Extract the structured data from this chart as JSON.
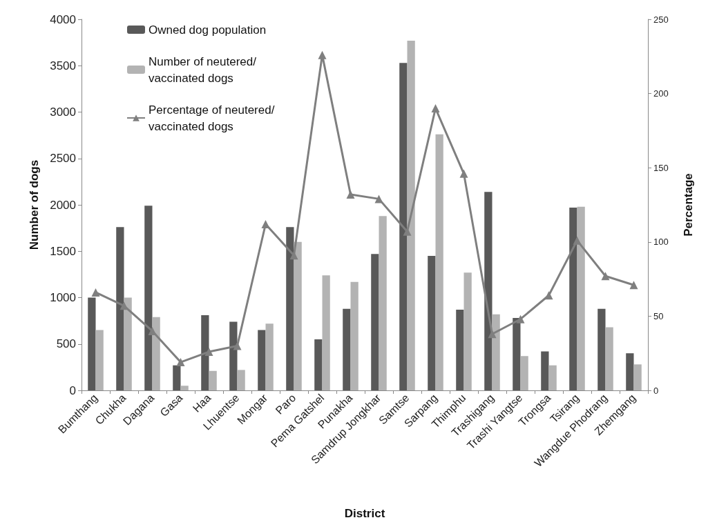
{
  "chart_data": {
    "type": "bar",
    "xlabel": "District",
    "ylabel": "Number of dogs",
    "y2label": "Percentage",
    "categories": [
      "Bumthang",
      "Chukha",
      "Dagana",
      "Gasa",
      "Haa",
      "Lhuentse",
      "Mongar",
      "Paro",
      "Pema Gatshel",
      "Punakha",
      "Samdrup Jongkhar",
      "Samtse",
      "Sarpang",
      "Thimphu",
      "Trashigang",
      "Trashi Yangtse",
      "Trongsa",
      "Tsirang",
      "Wangdue Phodrang",
      "Zhemgang"
    ],
    "series": [
      {
        "name": "Owned dog population",
        "color": "#595959",
        "values": [
          1000,
          1760,
          1990,
          270,
          810,
          740,
          650,
          1760,
          550,
          880,
          1470,
          3530,
          1450,
          870,
          2140,
          780,
          420,
          1970,
          880,
          400
        ]
      },
      {
        "name": "Number of neutered/ vaccinated dogs",
        "color": "#b3b3b3",
        "values": [
          650,
          1000,
          790,
          50,
          210,
          220,
          720,
          1600,
          1240,
          1170,
          1880,
          3770,
          2760,
          1270,
          820,
          370,
          270,
          1980,
          680,
          280
        ]
      },
      {
        "name": "Percentage of neutered/ vaccinated dogs",
        "type": "line",
        "axis": "y2",
        "color": "#7f7f7f",
        "marker": "triangle",
        "values": [
          66,
          57,
          40,
          19,
          26,
          30,
          112,
          91,
          226,
          132,
          129,
          107,
          190,
          146,
          38,
          48,
          64,
          101,
          77,
          71
        ]
      }
    ],
    "ylim": [
      0,
      4000
    ],
    "yticks": [
      0,
      500,
      1000,
      1500,
      2000,
      2500,
      3000,
      3500,
      4000
    ],
    "y2lim": [
      0,
      250
    ],
    "y2ticks": [
      0,
      50,
      100,
      150,
      200,
      250
    ],
    "grid": false,
    "legend": "top left"
  }
}
